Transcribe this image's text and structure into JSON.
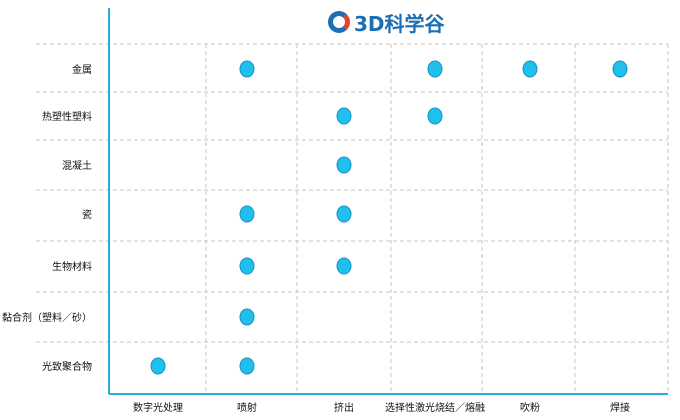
{
  "logo": {
    "text": "3D科学谷"
  },
  "colors": {
    "axis": "#29aee0",
    "grid": "#c4c4c4",
    "dot": "#1fc0ee",
    "dot_stroke": "#1890c2"
  },
  "chart_data": {
    "type": "scatter",
    "title": "",
    "xlabel": "",
    "ylabel": "",
    "grid": true,
    "categories_x": [
      "数字光处理",
      "喷射",
      "挤出",
      "选择性激光烧结／熔融",
      "吹粉",
      "焊接"
    ],
    "categories_y": [
      "金属",
      "热塑性塑料",
      "混凝土",
      "瓷",
      "生物材料",
      "黏合剂（塑料／砂）",
      "光致聚合物"
    ],
    "points": [
      {
        "x": "喷射",
        "y": "金属"
      },
      {
        "x": "选择性激光烧结／熔融",
        "y": "金属"
      },
      {
        "x": "吹粉",
        "y": "金属"
      },
      {
        "x": "焊接",
        "y": "金属"
      },
      {
        "x": "挤出",
        "y": "热塑性塑料"
      },
      {
        "x": "选择性激光烧结／熔融",
        "y": "热塑性塑料"
      },
      {
        "x": "挤出",
        "y": "混凝土"
      },
      {
        "x": "喷射",
        "y": "瓷"
      },
      {
        "x": "挤出",
        "y": "瓷"
      },
      {
        "x": "喷射",
        "y": "生物材料"
      },
      {
        "x": "挤出",
        "y": "生物材料"
      },
      {
        "x": "喷射",
        "y": "黏合剂（塑料／砂）"
      },
      {
        "x": "数字光处理",
        "y": "光致聚合物"
      },
      {
        "x": "喷射",
        "y": "光致聚合物"
      }
    ]
  }
}
